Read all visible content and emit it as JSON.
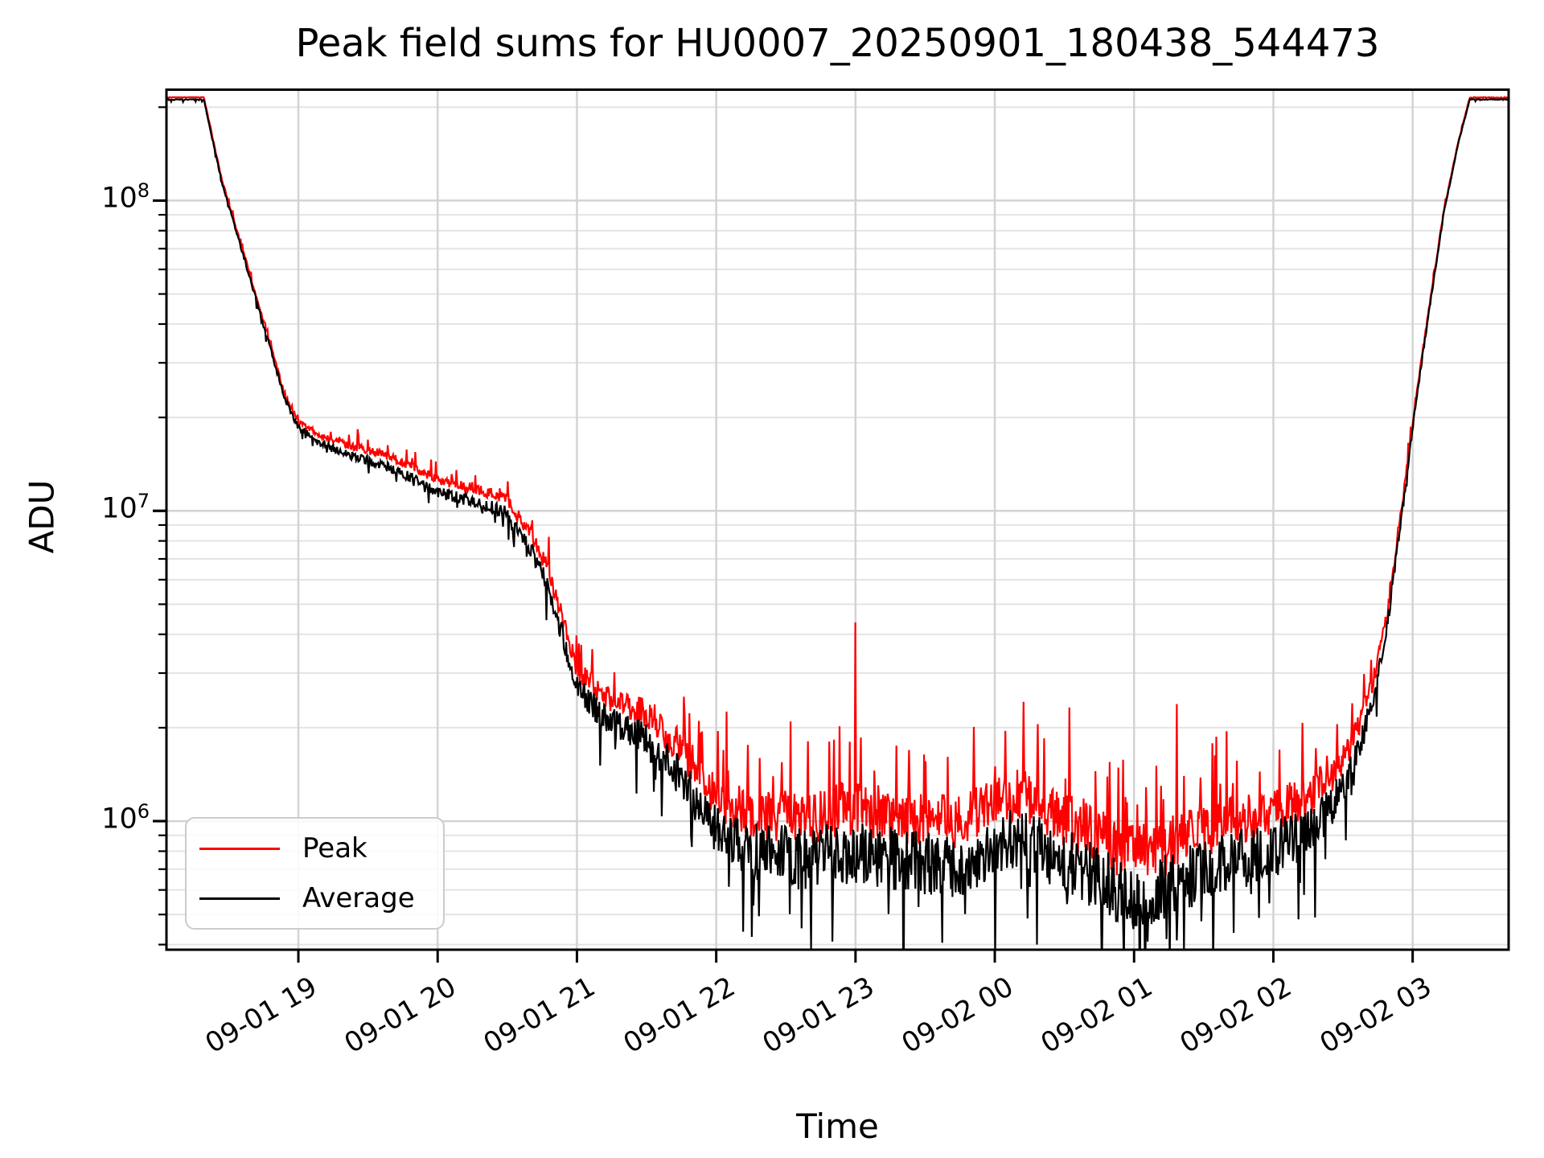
{
  "figure": {
    "title": "Peak field sums for HU0007_20250901_180438_544473",
    "xlabel": "Time",
    "ylabel": "ADU"
  },
  "axes": {
    "x_tick_labels": [
      "09-01 19",
      "09-01 20",
      "09-01 21",
      "09-01 22",
      "09-01 23",
      "09-02 00",
      "09-02 01",
      "09-02 02",
      "09-02 03"
    ],
    "x_tick_hours": [
      1,
      2,
      3,
      4,
      5,
      6,
      7,
      8,
      9
    ],
    "x_start_hour": 0.053,
    "x_end_hour": 9.689,
    "y_tick_exponents": [
      6,
      7,
      8
    ],
    "log_ymin": 5.5855,
    "log_ymax": 8.3575,
    "y_scale": "log",
    "grid": "both"
  },
  "legend": {
    "entries": [
      {
        "label": "Peak",
        "color": "#ff0000"
      },
      {
        "label": "Average",
        "color": "#000000"
      }
    ]
  },
  "colors": {
    "peak": "#ff0000",
    "average": "#000000",
    "grid_major": "#d3d3d3",
    "grid_minor": "#e4e4e4",
    "spine": "#000000",
    "background": "#ffffff"
  },
  "chart_data": {
    "type": "line",
    "title": "Peak field sums for HU0007_20250901_180438_544473",
    "xlabel": "Time",
    "ylabel": "ADU",
    "x_unit": "hours after 2025-09-01 18:00",
    "x_range_hours": [
      0.053,
      9.689
    ],
    "y_range_adu": [
      385000,
      228000000
    ],
    "saturation_adu": 212000000,
    "saturation_log10": 8.3264,
    "legend_position": "lower left",
    "series": [
      {
        "name": "Average",
        "color": "#000000",
        "keypoints_log10_adu": [
          [
            0.053,
            8.3264
          ],
          [
            0.32,
            8.3264
          ],
          [
            0.45,
            8.06
          ],
          [
            0.62,
            7.8
          ],
          [
            0.8,
            7.52
          ],
          [
            0.896,
            7.37
          ],
          [
            0.95,
            7.31
          ],
          [
            1.0,
            7.27
          ],
          [
            1.15,
            7.22
          ],
          [
            1.35,
            7.18
          ],
          [
            1.6,
            7.15
          ],
          [
            1.8,
            7.11
          ],
          [
            2.0,
            7.06
          ],
          [
            2.25,
            7.03
          ],
          [
            2.47,
            7.0
          ],
          [
            2.65,
            6.89
          ],
          [
            2.8,
            6.75
          ],
          [
            3.0,
            6.43
          ],
          [
            3.2,
            6.33
          ],
          [
            3.5,
            6.26
          ],
          [
            3.75,
            6.14
          ],
          [
            4.0,
            5.97
          ],
          [
            4.3,
            5.9
          ],
          [
            4.6,
            5.88
          ],
          [
            5.0,
            5.9
          ],
          [
            5.4,
            5.87
          ],
          [
            5.75,
            5.85
          ],
          [
            6.0,
            5.91
          ],
          [
            6.15,
            5.95
          ],
          [
            6.3,
            5.92
          ],
          [
            6.55,
            5.86
          ],
          [
            6.8,
            5.8
          ],
          [
            7.0,
            5.76
          ],
          [
            7.2,
            5.78
          ],
          [
            7.45,
            5.83
          ],
          [
            7.7,
            5.87
          ],
          [
            8.0,
            5.91
          ],
          [
            8.2,
            5.95
          ],
          [
            8.35,
            6.01
          ],
          [
            8.5,
            6.1
          ],
          [
            8.62,
            6.24
          ],
          [
            8.72,
            6.4
          ],
          [
            8.82,
            6.64
          ],
          [
            8.92,
            6.98
          ],
          [
            9.02,
            7.34
          ],
          [
            9.12,
            7.65
          ],
          [
            9.22,
            7.95
          ],
          [
            9.32,
            8.17
          ],
          [
            9.41,
            8.3264
          ],
          [
            9.689,
            8.3264
          ]
        ]
      },
      {
        "name": "Peak",
        "color": "#ff0000",
        "offset_above_average_log10": [
          [
            0.053,
            0.006
          ],
          [
            0.32,
            0.008
          ],
          [
            0.9,
            0.015
          ],
          [
            1.3,
            0.03
          ],
          [
            2.0,
            0.04
          ],
          [
            2.6,
            0.05
          ],
          [
            3.0,
            0.06
          ],
          [
            3.5,
            0.085
          ],
          [
            4.0,
            0.105
          ],
          [
            4.5,
            0.13
          ],
          [
            5.0,
            0.14
          ],
          [
            5.7,
            0.145
          ],
          [
            6.2,
            0.14
          ],
          [
            6.8,
            0.135
          ],
          [
            7.3,
            0.13
          ],
          [
            7.8,
            0.125
          ],
          [
            8.2,
            0.115
          ],
          [
            8.5,
            0.09
          ],
          [
            8.72,
            0.055
          ],
          [
            8.92,
            0.025
          ],
          [
            9.1,
            0.012
          ],
          [
            9.3,
            0.006
          ],
          [
            9.689,
            0.005
          ]
        ]
      }
    ],
    "noise_halfwidth_log10": [
      [
        0.053,
        0.003
      ],
      [
        0.32,
        0.004
      ],
      [
        0.9,
        0.012
      ],
      [
        1.3,
        0.018
      ],
      [
        2.0,
        0.022
      ],
      [
        2.6,
        0.032
      ],
      [
        3.0,
        0.05
      ],
      [
        3.5,
        0.07
      ],
      [
        4.0,
        0.1
      ],
      [
        4.5,
        0.125
      ],
      [
        5.0,
        0.13
      ],
      [
        5.5,
        0.125
      ],
      [
        6.0,
        0.12
      ],
      [
        6.5,
        0.13
      ],
      [
        7.0,
        0.14
      ],
      [
        7.5,
        0.125
      ],
      [
        8.0,
        0.115
      ],
      [
        8.35,
        0.095
      ],
      [
        8.6,
        0.06
      ],
      [
        8.8,
        0.032
      ],
      [
        9.0,
        0.014
      ],
      [
        9.2,
        0.006
      ],
      [
        9.41,
        0.0025
      ],
      [
        9.689,
        0.0025
      ]
    ],
    "n_samples": 1700
  }
}
